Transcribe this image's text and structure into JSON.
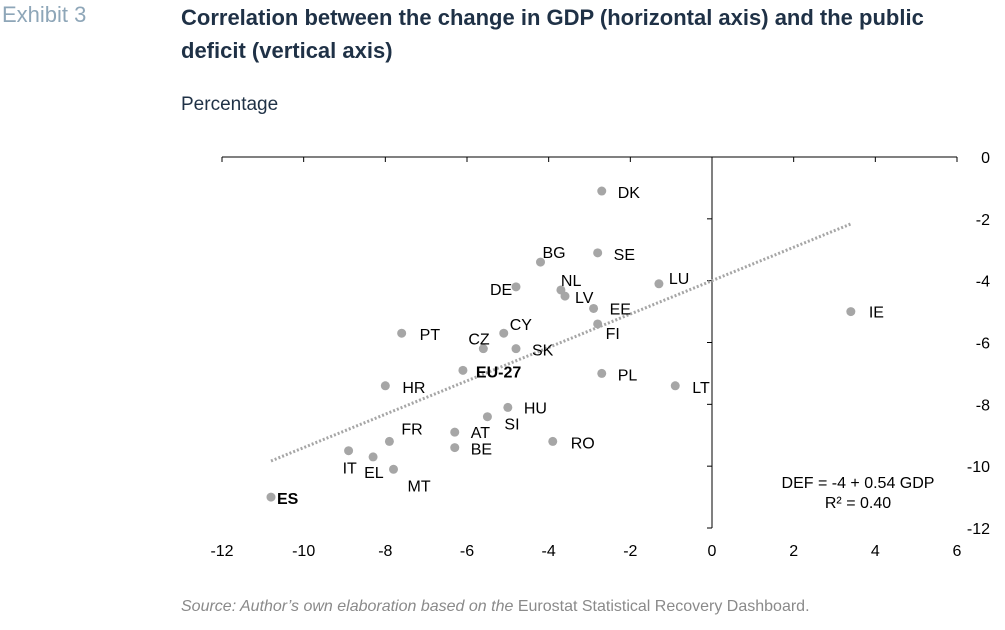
{
  "header": {
    "exhibit_label": "Exhibit 3",
    "title": "Correlation between the change in GDP (horizontal axis) and the public deficit (vertical axis)",
    "unit_label": "Percentage"
  },
  "source": {
    "prefix": "Source: Author’s own elaboration based on the ",
    "name": "Eurostat Statistical Recovery Dashboard",
    "suffix": "."
  },
  "colors": {
    "title": "#1f3146",
    "exhibit": "#8ea6b8",
    "point": "#a6a6a6",
    "trend": "#a6a6a6",
    "axis": "#000000"
  },
  "chart_data": {
    "type": "scatter",
    "xlim": [
      -12,
      6
    ],
    "ylim": [
      -12,
      0
    ],
    "x_ticks": [
      -12,
      -10,
      -8,
      -6,
      -4,
      -2,
      0,
      2,
      4,
      6
    ],
    "y_ticks": [
      0,
      -2,
      -4,
      -6,
      -8,
      -10,
      -12
    ],
    "x_tick_labels": [
      "-12",
      "-10",
      "-8",
      "-6",
      "-4",
      "-2",
      "0",
      "2",
      "4",
      "6"
    ],
    "y_tick_labels": [
      "0",
      "-2",
      "-4",
      "-6",
      "-8",
      "-10",
      "-12"
    ],
    "y_axis_position": "right",
    "grid": false,
    "trendline": {
      "intercept": -4,
      "slope": 0.54,
      "x_range": [
        -10.8,
        3.4
      ]
    },
    "equation_lines": [
      "DEF = -4 + 0.54 GDP",
      "R² = 0.40"
    ],
    "points": [
      {
        "label": "DK",
        "x": -2.7,
        "y": -1.1
      },
      {
        "label": "SE",
        "x": -2.8,
        "y": -3.1
      },
      {
        "label": "BG",
        "x": -4.2,
        "y": -3.4
      },
      {
        "label": "LU",
        "x": -1.3,
        "y": -4.1
      },
      {
        "label": "NL",
        "x": -3.7,
        "y": -4.3
      },
      {
        "label": "DE",
        "x": -4.8,
        "y": -4.2
      },
      {
        "label": "LV",
        "x": -3.6,
        "y": -4.5
      },
      {
        "label": "EE",
        "x": -2.9,
        "y": -4.9
      },
      {
        "label": "IE",
        "x": 3.4,
        "y": -5.0
      },
      {
        "label": "FI",
        "x": -2.8,
        "y": -5.4
      },
      {
        "label": "PT",
        "x": -7.6,
        "y": -5.7
      },
      {
        "label": "CY",
        "x": -5.1,
        "y": -5.7
      },
      {
        "label": "CZ",
        "x": -5.6,
        "y": -6.2
      },
      {
        "label": "SK",
        "x": -4.8,
        "y": -6.2
      },
      {
        "label": "EU-27",
        "x": -6.1,
        "y": -6.9,
        "bold": true
      },
      {
        "label": "PL",
        "x": -2.7,
        "y": -7.0
      },
      {
        "label": "HR",
        "x": -8.0,
        "y": -7.4
      },
      {
        "label": "LT",
        "x": -0.9,
        "y": -7.4
      },
      {
        "label": "HU",
        "x": -5.0,
        "y": -8.1
      },
      {
        "label": "SI",
        "x": -5.5,
        "y": -8.4
      },
      {
        "label": "AT",
        "x": -6.3,
        "y": -8.9
      },
      {
        "label": "FR",
        "x": -7.9,
        "y": -9.2
      },
      {
        "label": "RO",
        "x": -3.9,
        "y": -9.2
      },
      {
        "label": "BE",
        "x": -6.3,
        "y": -9.4
      },
      {
        "label": "IT",
        "x": -8.9,
        "y": -9.5
      },
      {
        "label": "EL",
        "x": -8.3,
        "y": -9.7
      },
      {
        "label": "MT",
        "x": -7.8,
        "y": -10.1
      },
      {
        "label": "ES",
        "x": -10.8,
        "y": -11.0,
        "bold": true
      }
    ]
  }
}
